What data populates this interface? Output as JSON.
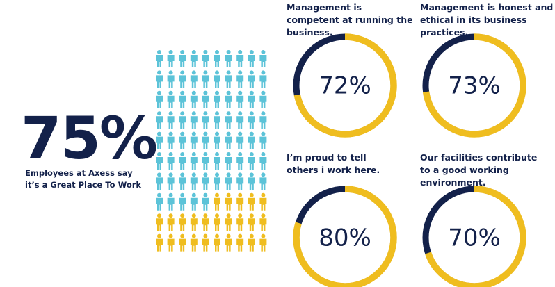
{
  "chart_data": [
    {
      "type": "pictogram",
      "title": "Employees at Axess say it’s a Great Place To Work",
      "values": [
        75
      ],
      "value_labels": [
        "75%"
      ],
      "color": "#5cc3d8",
      "other_color": "#efbd1f",
      "label_color": "#13214a"
    },
    {
      "type": "donut",
      "title": "Management is competent at running the business.",
      "values": [
        72
      ],
      "value_labels": [
        "72%"
      ],
      "color": "#efbd1f",
      "track_color": "#13214a"
    },
    {
      "type": "donut",
      "title": "Management is honest and ethical in its business practices.",
      "values": [
        73
      ],
      "value_labels": [
        "73%"
      ],
      "color": "#efbd1f",
      "track_color": "#13214a"
    },
    {
      "type": "donut",
      "title": "I’m proud to tell others i work here.",
      "values": [
        80
      ],
      "value_labels": [
        "80%"
      ],
      "color": "#efbd1f",
      "track_color": "#13214a"
    },
    {
      "type": "donut",
      "title": "Our facilities contribute to a good working environment.",
      "values": [
        70
      ],
      "value_labels": [
        "70%"
      ],
      "color": "#efbd1f",
      "track_color": "#13214a"
    }
  ]
}
